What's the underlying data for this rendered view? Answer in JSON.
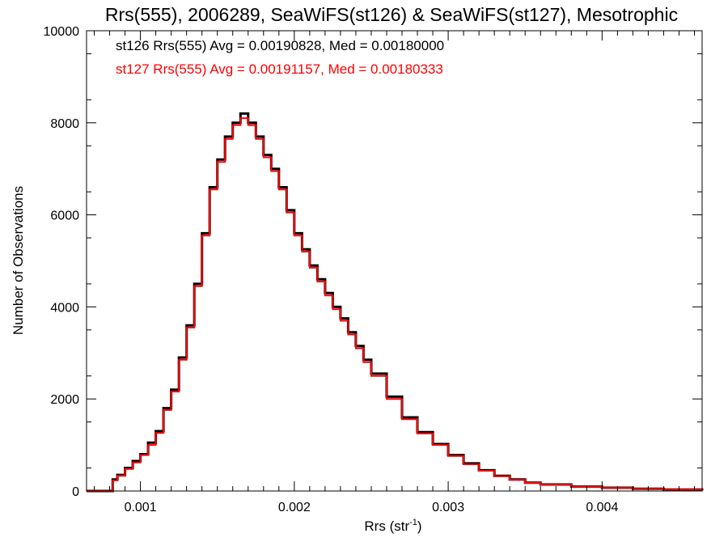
{
  "chart_data": {
    "type": "line",
    "title": "Rrs(555), 2006289, SeaWiFS(st126) & SeaWiFS(st127), Mesotrophic",
    "xlabel": "Rrs (str",
    "xlabel_superscript": "-1",
    "xlabel_close": ")",
    "ylabel": "Number of Observations",
    "xlim": [
      0.00065,
      0.00465
    ],
    "ylim": [
      0,
      10000
    ],
    "x_ticks": [
      0.001,
      0.002,
      0.003,
      0.004
    ],
    "x_tick_labels": [
      "0.001",
      "0.002",
      "0.003",
      "0.004"
    ],
    "y_ticks": [
      0,
      2000,
      4000,
      6000,
      8000,
      10000
    ],
    "y_tick_labels": [
      "0",
      "2000",
      "4000",
      "6000",
      "8000",
      "10000"
    ],
    "grid": false,
    "step": "histogram",
    "series": [
      {
        "name": "st126",
        "color": "#000000",
        "annotation": "st126 Rrs(555) Avg = 0.00190828, Med = 0.00180000",
        "x": [
          0.00065,
          0.0008,
          0.00082,
          0.00085,
          0.0009,
          0.00095,
          0.001,
          0.00105,
          0.0011,
          0.00115,
          0.0012,
          0.00125,
          0.0013,
          0.00135,
          0.0014,
          0.00145,
          0.0015,
          0.00155,
          0.0016,
          0.00165,
          0.0017,
          0.00175,
          0.0018,
          0.00185,
          0.0019,
          0.00195,
          0.002,
          0.00205,
          0.0021,
          0.00215,
          0.0022,
          0.00225,
          0.0023,
          0.00235,
          0.0024,
          0.00245,
          0.0025,
          0.0026,
          0.0027,
          0.0028,
          0.0029,
          0.003,
          0.0031,
          0.0032,
          0.0033,
          0.0034,
          0.0035,
          0.0036,
          0.0038,
          0.004,
          0.0042,
          0.0044,
          0.00465
        ],
        "y": [
          0,
          0,
          250,
          350,
          500,
          650,
          800,
          1050,
          1300,
          1800,
          2200,
          2900,
          3600,
          4500,
          5600,
          6600,
          7200,
          7700,
          8000,
          8200,
          8000,
          7700,
          7300,
          7000,
          6600,
          6100,
          5600,
          5250,
          4900,
          4600,
          4300,
          4000,
          3750,
          3450,
          3150,
          2850,
          2550,
          2050,
          1600,
          1280,
          1020,
          780,
          600,
          450,
          330,
          250,
          180,
          140,
          95,
          70,
          50,
          30,
          10
        ]
      },
      {
        "name": "st127",
        "color": "#ff0000",
        "annotation": "st127 Rrs(555) Avg = 0.00191157, Med = 0.00180333",
        "x": [
          0.00065,
          0.0008,
          0.00082,
          0.00085,
          0.0009,
          0.00095,
          0.001,
          0.00105,
          0.0011,
          0.00115,
          0.0012,
          0.00125,
          0.0013,
          0.00135,
          0.0014,
          0.00145,
          0.0015,
          0.00155,
          0.0016,
          0.00165,
          0.0017,
          0.00175,
          0.0018,
          0.00185,
          0.0019,
          0.00195,
          0.002,
          0.00205,
          0.0021,
          0.00215,
          0.0022,
          0.00225,
          0.0023,
          0.00235,
          0.0024,
          0.00245,
          0.0025,
          0.0026,
          0.0027,
          0.0028,
          0.0029,
          0.003,
          0.0031,
          0.0032,
          0.0033,
          0.0034,
          0.0035,
          0.0036,
          0.0038,
          0.004,
          0.0042,
          0.0044,
          0.00465
        ],
        "y": [
          0,
          0,
          230,
          330,
          480,
          620,
          780,
          1000,
          1260,
          1760,
          2160,
          2850,
          3550,
          4450,
          5550,
          6550,
          7150,
          7650,
          7950,
          8100,
          7950,
          7650,
          7250,
          6950,
          6550,
          6050,
          5550,
          5200,
          4850,
          4550,
          4250,
          3950,
          3700,
          3400,
          3100,
          2800,
          2500,
          2000,
          1560,
          1250,
          1000,
          760,
          580,
          440,
          320,
          240,
          175,
          135,
          90,
          65,
          45,
          28,
          8
        ]
      }
    ]
  }
}
